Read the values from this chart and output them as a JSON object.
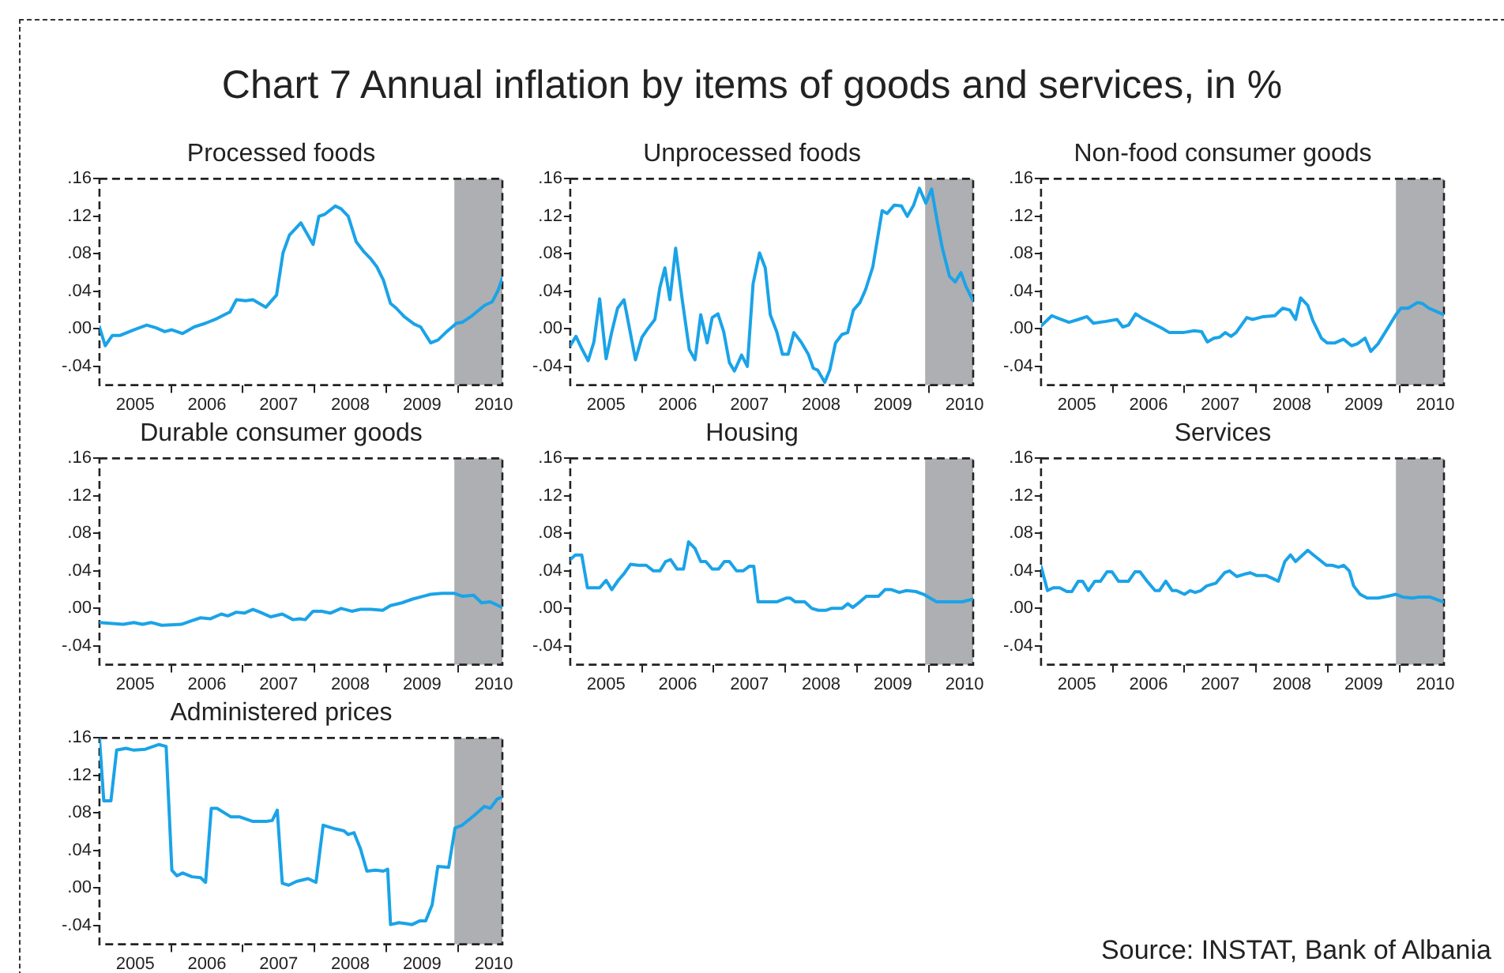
{
  "chart_data": [
    {
      "type": "other",
      "title": "Chart 7 Annual inflation by items of goods and services, in %",
      "annotations": [
        "Source: INSTAT, Bank of Albania"
      ]
    },
    {
      "type": "line",
      "title": "Processed foods",
      "marker": "none",
      "xlim": [
        2005,
        2010.62
      ],
      "ylim": [
        -0.06,
        0.16
      ],
      "xticks": [
        {
          "value": 2005.5,
          "label": "2005"
        },
        {
          "value": 2006,
          "label": null
        },
        {
          "value": 2006.5,
          "label": "2006"
        },
        {
          "value": 2007,
          "label": null
        },
        {
          "value": 2007.5,
          "label": "2007"
        },
        {
          "value": 2008,
          "label": null
        },
        {
          "value": 2008.5,
          "label": "2008"
        },
        {
          "value": 2009,
          "label": null
        },
        {
          "value": 2009.5,
          "label": "2009"
        },
        {
          "value": 2010,
          "label": null
        },
        {
          "value": 2010.5,
          "label": "2010"
        }
      ],
      "yticks": [
        {
          "value": -0.04,
          "label": "-.04"
        },
        {
          "value": 0,
          "label": ".00"
        },
        {
          "value": 0.04,
          "label": ".04"
        },
        {
          "value": 0.08,
          "label": ".08"
        },
        {
          "value": 0.12,
          "label": ".12"
        },
        {
          "value": 0.16,
          "label": ".16"
        }
      ],
      "bands": [
        {
          "axis": "x",
          "from": 2009.95,
          "to": 2010.62,
          "color": "#adafb2"
        }
      ],
      "series": [
        {
          "color": "#1aa3e8",
          "x": [
            2005.0,
            2005.08,
            2005.18,
            2005.29,
            2005.48,
            2005.66,
            2005.79,
            2005.91,
            2006.01,
            2006.16,
            2006.32,
            2006.48,
            2006.64,
            2006.82,
            2006.91,
            2007.04,
            2007.14,
            2007.32,
            2007.47,
            2007.56,
            2007.65,
            2007.81,
            2007.98,
            2008.06,
            2008.14,
            2008.29,
            2008.37,
            2008.47,
            2008.58,
            2008.68,
            2008.78,
            2008.87,
            2008.96,
            2009.06,
            2009.14,
            2009.25,
            2009.39,
            2009.48,
            2009.62,
            2009.72,
            2009.83,
            2009.98,
            2010.06,
            2010.18,
            2010.37,
            2010.48,
            2010.56,
            2010.62
          ],
          "values": [
            0.002,
            -0.018,
            -0.007,
            -0.007,
            -0.001,
            0.004,
            0.001,
            -0.003,
            -0.001,
            -0.005,
            0.002,
            0.006,
            0.011,
            0.018,
            0.031,
            0.03,
            0.031,
            0.023,
            0.036,
            0.081,
            0.1,
            0.113,
            0.09,
            0.12,
            0.122,
            0.131,
            0.128,
            0.12,
            0.093,
            0.083,
            0.075,
            0.066,
            0.052,
            0.027,
            0.022,
            0.013,
            0.005,
            0.002,
            -0.015,
            -0.012,
            -0.004,
            0.006,
            0.007,
            0.013,
            0.025,
            0.029,
            0.041,
            0.054
          ]
        }
      ]
    },
    {
      "type": "line",
      "title": "Unprocessed foods",
      "marker": "none",
      "xlim": [
        2005,
        2010.62
      ],
      "ylim": [
        -0.06,
        0.16
      ],
      "xticks": [
        {
          "value": 2005.5,
          "label": "2005"
        },
        {
          "value": 2006,
          "label": null
        },
        {
          "value": 2006.5,
          "label": "2006"
        },
        {
          "value": 2007,
          "label": null
        },
        {
          "value": 2007.5,
          "label": "2007"
        },
        {
          "value": 2008,
          "label": null
        },
        {
          "value": 2008.5,
          "label": "2008"
        },
        {
          "value": 2009,
          "label": null
        },
        {
          "value": 2009.5,
          "label": "2009"
        },
        {
          "value": 2010,
          "label": null
        },
        {
          "value": 2010.5,
          "label": "2010"
        }
      ],
      "yticks": [
        {
          "value": -0.04,
          "label": "-.04"
        },
        {
          "value": 0,
          "label": ".00"
        },
        {
          "value": 0.04,
          "label": ".04"
        },
        {
          "value": 0.08,
          "label": ".08"
        },
        {
          "value": 0.12,
          "label": ".12"
        },
        {
          "value": 0.16,
          "label": ".16"
        }
      ],
      "bands": [
        {
          "axis": "x",
          "from": 2009.95,
          "to": 2010.62,
          "color": "#adafb2"
        }
      ],
      "series": [
        {
          "color": "#1aa3e8",
          "x": [
            2005.0,
            2005.08,
            2005.16,
            2005.25,
            2005.33,
            2005.41,
            2005.5,
            2005.58,
            2005.66,
            2005.75,
            2005.91,
            2006.0,
            2006.08,
            2006.18,
            2006.25,
            2006.32,
            2006.39,
            2006.47,
            2006.56,
            2006.66,
            2006.74,
            2006.82,
            2006.91,
            2006.98,
            2007.06,
            2007.14,
            2007.22,
            2007.29,
            2007.39,
            2007.47,
            2007.55,
            2007.64,
            2007.72,
            2007.79,
            2007.88,
            2007.96,
            2008.04,
            2008.12,
            2008.22,
            2008.32,
            2008.39,
            2008.45,
            2008.55,
            2008.62,
            2008.7,
            2008.79,
            2008.87,
            2008.95,
            2009.04,
            2009.12,
            2009.22,
            2009.35,
            2009.42,
            2009.52,
            2009.62,
            2009.7,
            2009.79,
            2009.87,
            2009.96,
            2010.04,
            2010.12,
            2010.19,
            2010.29,
            2010.37,
            2010.45,
            2010.52,
            2010.62
          ],
          "values": [
            -0.018,
            -0.008,
            -0.021,
            -0.034,
            -0.014,
            0.032,
            -0.032,
            -0.003,
            0.022,
            0.031,
            -0.033,
            -0.009,
            0.0,
            0.01,
            0.044,
            0.065,
            0.031,
            0.086,
            0.032,
            -0.022,
            -0.033,
            0.015,
            -0.015,
            0.012,
            0.016,
            -0.003,
            -0.036,
            -0.045,
            -0.028,
            -0.04,
            0.048,
            0.081,
            0.065,
            0.015,
            -0.003,
            -0.027,
            -0.027,
            -0.004,
            -0.014,
            -0.027,
            -0.042,
            -0.044,
            -0.057,
            -0.044,
            -0.015,
            -0.006,
            -0.004,
            0.02,
            0.028,
            0.042,
            0.066,
            0.126,
            0.123,
            0.132,
            0.131,
            0.12,
            0.132,
            0.15,
            0.134,
            0.149,
            0.114,
            0.086,
            0.056,
            0.05,
            0.06,
            0.045,
            0.03
          ]
        }
      ]
    },
    {
      "type": "line",
      "title": "Non-food consumer goods",
      "marker": "none",
      "xlim": [
        2005,
        2010.62
      ],
      "ylim": [
        -0.06,
        0.16
      ],
      "xticks": [
        {
          "value": 2005.5,
          "label": "2005"
        },
        {
          "value": 2006,
          "label": null
        },
        {
          "value": 2006.5,
          "label": "2006"
        },
        {
          "value": 2007,
          "label": null
        },
        {
          "value": 2007.5,
          "label": "2007"
        },
        {
          "value": 2008,
          "label": null
        },
        {
          "value": 2008.5,
          "label": "2008"
        },
        {
          "value": 2009,
          "label": null
        },
        {
          "value": 2009.5,
          "label": "2009"
        },
        {
          "value": 2010,
          "label": null
        },
        {
          "value": 2010.5,
          "label": "2010"
        }
      ],
      "yticks": [
        {
          "value": -0.04,
          "label": "-.04"
        },
        {
          "value": 0,
          "label": ".00"
        },
        {
          "value": 0.04,
          "label": ".04"
        },
        {
          "value": 0.08,
          "label": ".08"
        },
        {
          "value": 0.12,
          "label": ".12"
        },
        {
          "value": 0.16,
          "label": ".16"
        }
      ],
      "bands": [
        {
          "axis": "x",
          "from": 2009.95,
          "to": 2010.62,
          "color": "#adafb2"
        }
      ],
      "series": [
        {
          "color": "#1aa3e8",
          "x": [
            2005.0,
            2005.15,
            2005.25,
            2005.39,
            2005.52,
            2005.64,
            2005.73,
            2005.91,
            2006.06,
            2006.14,
            2006.22,
            2006.32,
            2006.42,
            2006.55,
            2006.68,
            2006.79,
            2006.98,
            2007.14,
            2007.24,
            2007.32,
            2007.41,
            2007.49,
            2007.57,
            2007.65,
            2007.72,
            2007.87,
            2007.95,
            2008.1,
            2008.26,
            2008.37,
            2008.47,
            2008.55,
            2008.62,
            2008.72,
            2008.79,
            2008.91,
            2008.99,
            2009.1,
            2009.22,
            2009.33,
            2009.41,
            2009.52,
            2009.6,
            2009.7,
            2009.83,
            2009.95,
            2010.02,
            2010.12,
            2010.25,
            2010.32,
            2010.41,
            2010.62
          ],
          "values": [
            0.003,
            0.014,
            0.011,
            0.007,
            0.01,
            0.013,
            0.006,
            0.008,
            0.01,
            0.002,
            0.004,
            0.016,
            0.011,
            0.006,
            0.001,
            -0.004,
            -0.004,
            -0.002,
            -0.003,
            -0.014,
            -0.01,
            -0.009,
            -0.004,
            -0.008,
            -0.004,
            0.012,
            0.01,
            0.013,
            0.014,
            0.022,
            0.02,
            0.01,
            0.033,
            0.025,
            0.009,
            -0.01,
            -0.015,
            -0.015,
            -0.011,
            -0.018,
            -0.016,
            -0.01,
            -0.024,
            -0.016,
            0.0,
            0.015,
            0.022,
            0.022,
            0.028,
            0.027,
            0.022,
            0.015
          ]
        }
      ]
    },
    {
      "type": "line",
      "title": "Durable consumer goods",
      "marker": "none",
      "xlim": [
        2005,
        2010.62
      ],
      "ylim": [
        -0.06,
        0.16
      ],
      "xticks": [
        {
          "value": 2005.5,
          "label": "2005"
        },
        {
          "value": 2006,
          "label": null
        },
        {
          "value": 2006.5,
          "label": "2006"
        },
        {
          "value": 2007,
          "label": null
        },
        {
          "value": 2007.5,
          "label": "2007"
        },
        {
          "value": 2008,
          "label": null
        },
        {
          "value": 2008.5,
          "label": "2008"
        },
        {
          "value": 2009,
          "label": null
        },
        {
          "value": 2009.5,
          "label": "2009"
        },
        {
          "value": 2010,
          "label": null
        },
        {
          "value": 2010.5,
          "label": "2010"
        }
      ],
      "yticks": [
        {
          "value": -0.04,
          "label": "-.04"
        },
        {
          "value": 0,
          "label": ".00"
        },
        {
          "value": 0.04,
          "label": ".04"
        },
        {
          "value": 0.08,
          "label": ".08"
        },
        {
          "value": 0.12,
          "label": ".12"
        },
        {
          "value": 0.16,
          "label": ".16"
        }
      ],
      "bands": [
        {
          "axis": "x",
          "from": 2009.95,
          "to": 2010.62,
          "color": "#adafb2"
        }
      ],
      "series": [
        {
          "color": "#1aa3e8",
          "x": [
            2005.0,
            2005.33,
            2005.48,
            2005.6,
            2005.72,
            2005.87,
            2006.14,
            2006.29,
            2006.41,
            2006.55,
            2006.7,
            2006.79,
            2006.91,
            2007.02,
            2007.14,
            2007.24,
            2007.39,
            2007.55,
            2007.7,
            2007.79,
            2007.87,
            2007.98,
            2008.1,
            2008.22,
            2008.37,
            2008.52,
            2008.64,
            2008.79,
            2008.95,
            2009.06,
            2009.22,
            2009.37,
            2009.52,
            2009.62,
            2009.78,
            2009.95,
            2010.06,
            2010.22,
            2010.33,
            2010.45,
            2010.62
          ],
          "values": [
            -0.015,
            -0.017,
            -0.015,
            -0.017,
            -0.015,
            -0.018,
            -0.017,
            -0.013,
            -0.01,
            -0.011,
            -0.006,
            -0.008,
            -0.004,
            -0.005,
            -0.001,
            -0.004,
            -0.009,
            -0.006,
            -0.012,
            -0.011,
            -0.012,
            -0.003,
            -0.003,
            -0.005,
            0.0,
            -0.003,
            -0.001,
            -0.001,
            -0.002,
            0.003,
            0.006,
            0.01,
            0.013,
            0.015,
            0.016,
            0.016,
            0.013,
            0.014,
            0.006,
            0.007,
            0.001
          ]
        }
      ]
    },
    {
      "type": "line",
      "title": "Housing",
      "marker": "none",
      "xlim": [
        2005,
        2010.62
      ],
      "ylim": [
        -0.06,
        0.16
      ],
      "xticks": [
        {
          "value": 2005.5,
          "label": "2005"
        },
        {
          "value": 2006,
          "label": null
        },
        {
          "value": 2006.5,
          "label": "2006"
        },
        {
          "value": 2007,
          "label": null
        },
        {
          "value": 2007.5,
          "label": "2007"
        },
        {
          "value": 2008,
          "label": null
        },
        {
          "value": 2008.5,
          "label": "2008"
        },
        {
          "value": 2009,
          "label": null
        },
        {
          "value": 2009.5,
          "label": "2009"
        },
        {
          "value": 2010,
          "label": null
        },
        {
          "value": 2010.5,
          "label": "2010"
        }
      ],
      "yticks": [
        {
          "value": -0.04,
          "label": "-.04"
        },
        {
          "value": 0,
          "label": ".00"
        },
        {
          "value": 0.04,
          "label": ".04"
        },
        {
          "value": 0.08,
          "label": ".08"
        },
        {
          "value": 0.12,
          "label": ".12"
        },
        {
          "value": 0.16,
          "label": ".16"
        }
      ],
      "bands": [
        {
          "axis": "x",
          "from": 2009.95,
          "to": 2010.62,
          "color": "#adafb2"
        }
      ],
      "series": [
        {
          "color": "#1aa3e8",
          "x": [
            2005.0,
            2005.07,
            2005.16,
            2005.24,
            2005.41,
            2005.5,
            2005.58,
            2005.67,
            2005.75,
            2005.84,
            2005.95,
            2006.06,
            2006.16,
            2006.25,
            2006.33,
            2006.4,
            2006.49,
            2006.58,
            2006.65,
            2006.74,
            2006.82,
            2006.89,
            2006.98,
            2007.07,
            2007.15,
            2007.22,
            2007.32,
            2007.41,
            2007.5,
            2007.56,
            2007.62,
            2007.88,
            2008.01,
            2008.07,
            2008.14,
            2008.27,
            2008.37,
            2008.46,
            2008.57,
            2008.64,
            2008.79,
            2008.87,
            2008.94,
            2009.04,
            2009.13,
            2009.3,
            2009.39,
            2009.48,
            2009.59,
            2009.69,
            2009.82,
            2009.93,
            2010.11,
            2010.47,
            2010.62
          ],
          "values": [
            0.052,
            0.057,
            0.057,
            0.022,
            0.022,
            0.03,
            0.02,
            0.03,
            0.037,
            0.047,
            0.046,
            0.046,
            0.04,
            0.04,
            0.05,
            0.052,
            0.042,
            0.042,
            0.071,
            0.064,
            0.05,
            0.05,
            0.042,
            0.042,
            0.05,
            0.05,
            0.04,
            0.04,
            0.045,
            0.045,
            0.007,
            0.007,
            0.011,
            0.011,
            0.007,
            0.007,
            0.0,
            -0.002,
            -0.002,
            0.0,
            0.0,
            0.005,
            0.001,
            0.007,
            0.013,
            0.013,
            0.02,
            0.02,
            0.017,
            0.019,
            0.018,
            0.015,
            0.007,
            0.007,
            0.01
          ]
        }
      ]
    },
    {
      "type": "line",
      "title": "Services",
      "marker": "none",
      "xlim": [
        2005,
        2010.62
      ],
      "ylim": [
        -0.06,
        0.16
      ],
      "xticks": [
        {
          "value": 2005.5,
          "label": "2005"
        },
        {
          "value": 2006,
          "label": null
        },
        {
          "value": 2006.5,
          "label": "2006"
        },
        {
          "value": 2007,
          "label": null
        },
        {
          "value": 2007.5,
          "label": "2007"
        },
        {
          "value": 2008,
          "label": null
        },
        {
          "value": 2008.5,
          "label": "2008"
        },
        {
          "value": 2009,
          "label": null
        },
        {
          "value": 2009.5,
          "label": "2009"
        },
        {
          "value": 2010,
          "label": null
        },
        {
          "value": 2010.5,
          "label": "2010"
        }
      ],
      "yticks": [
        {
          "value": -0.04,
          "label": "-.04"
        },
        {
          "value": 0,
          "label": ".00"
        },
        {
          "value": 0.04,
          "label": ".04"
        },
        {
          "value": 0.08,
          "label": ".08"
        },
        {
          "value": 0.12,
          "label": ".12"
        },
        {
          "value": 0.16,
          "label": ".16"
        }
      ],
      "bands": [
        {
          "axis": "x",
          "from": 2009.95,
          "to": 2010.62,
          "color": "#adafb2"
        }
      ],
      "series": [
        {
          "color": "#1aa3e8",
          "x": [
            2005.0,
            2005.09,
            2005.17,
            2005.26,
            2005.36,
            2005.43,
            2005.52,
            2005.58,
            2005.66,
            2005.75,
            2005.83,
            2005.92,
            2005.99,
            2006.08,
            2006.22,
            2006.31,
            2006.38,
            2006.48,
            2006.59,
            2006.65,
            2006.74,
            2006.83,
            2006.89,
            2007.0,
            2007.08,
            2007.15,
            2007.23,
            2007.31,
            2007.44,
            2007.56,
            2007.63,
            2007.73,
            2007.86,
            2007.92,
            2008.01,
            2008.14,
            2008.23,
            2008.31,
            2008.4,
            2008.48,
            2008.55,
            2008.72,
            2008.8,
            2008.98,
            2009.06,
            2009.15,
            2009.22,
            2009.3,
            2009.36,
            2009.45,
            2009.55,
            2009.7,
            2009.83,
            2009.95,
            2010.05,
            2010.18,
            2010.26,
            2010.43,
            2010.61
          ],
          "values": [
            0.045,
            0.019,
            0.022,
            0.022,
            0.018,
            0.018,
            0.029,
            0.029,
            0.019,
            0.029,
            0.029,
            0.039,
            0.039,
            0.029,
            0.029,
            0.039,
            0.039,
            0.029,
            0.019,
            0.019,
            0.029,
            0.019,
            0.019,
            0.015,
            0.019,
            0.017,
            0.019,
            0.024,
            0.027,
            0.038,
            0.04,
            0.034,
            0.037,
            0.038,
            0.035,
            0.035,
            0.032,
            0.029,
            0.05,
            0.057,
            0.05,
            0.062,
            0.057,
            0.046,
            0.046,
            0.044,
            0.046,
            0.04,
            0.024,
            0.015,
            0.011,
            0.011,
            0.013,
            0.015,
            0.012,
            0.011,
            0.012,
            0.012,
            0.007
          ]
        }
      ]
    },
    {
      "type": "line",
      "title": "Administered prices",
      "marker": "none",
      "xlim": [
        2005,
        2010.62
      ],
      "ylim": [
        -0.06,
        0.16
      ],
      "xticks": [
        {
          "value": 2005.5,
          "label": "2005"
        },
        {
          "value": 2006,
          "label": null
        },
        {
          "value": 2006.5,
          "label": "2006"
        },
        {
          "value": 2007,
          "label": null
        },
        {
          "value": 2007.5,
          "label": "2007"
        },
        {
          "value": 2008,
          "label": null
        },
        {
          "value": 2008.5,
          "label": "2008"
        },
        {
          "value": 2009,
          "label": null
        },
        {
          "value": 2009.5,
          "label": "2009"
        },
        {
          "value": 2010,
          "label": null
        },
        {
          "value": 2010.5,
          "label": "2010"
        }
      ],
      "yticks": [
        {
          "value": -0.04,
          "label": "-.04"
        },
        {
          "value": 0,
          "label": ".00"
        },
        {
          "value": 0.04,
          "label": ".04"
        },
        {
          "value": 0.08,
          "label": ".08"
        },
        {
          "value": 0.12,
          "label": ".12"
        },
        {
          "value": 0.16,
          "label": ".16"
        }
      ],
      "bands": [
        {
          "axis": "x",
          "from": 2009.95,
          "to": 2010.62,
          "color": "#adafb2"
        }
      ],
      "series": [
        {
          "color": "#1aa3e8",
          "x": [
            2005.0,
            2005.06,
            2005.16,
            2005.24,
            2005.37,
            2005.48,
            2005.64,
            2005.83,
            2005.93,
            2006.01,
            2006.08,
            2006.16,
            2006.29,
            2006.41,
            2006.48,
            2006.56,
            2006.64,
            2006.83,
            2006.95,
            2007.14,
            2007.33,
            2007.41,
            2007.48,
            2007.55,
            2007.64,
            2007.75,
            2007.91,
            2008.02,
            2008.12,
            2008.29,
            2008.41,
            2008.47,
            2008.55,
            2008.64,
            2008.73,
            2008.85,
            2008.96,
            2009.02,
            2009.06,
            2009.18,
            2009.28,
            2009.36,
            2009.47,
            2009.55,
            2009.64,
            2009.72,
            2009.87,
            2009.96,
            2010.06,
            2010.22,
            2010.37,
            2010.45,
            2010.55,
            2010.62
          ],
          "values": [
            0.16,
            0.093,
            0.093,
            0.147,
            0.149,
            0.147,
            0.148,
            0.153,
            0.151,
            0.019,
            0.013,
            0.016,
            0.012,
            0.011,
            0.006,
            0.085,
            0.085,
            0.076,
            0.076,
            0.071,
            0.071,
            0.072,
            0.083,
            0.005,
            0.003,
            0.007,
            0.01,
            0.006,
            0.067,
            0.063,
            0.061,
            0.057,
            0.059,
            0.042,
            0.018,
            0.019,
            0.018,
            0.02,
            -0.039,
            -0.037,
            -0.038,
            -0.039,
            -0.035,
            -0.035,
            -0.018,
            0.023,
            0.022,
            0.064,
            0.067,
            0.077,
            0.087,
            0.085,
            0.095,
            0.097
          ]
        }
      ]
    }
  ]
}
